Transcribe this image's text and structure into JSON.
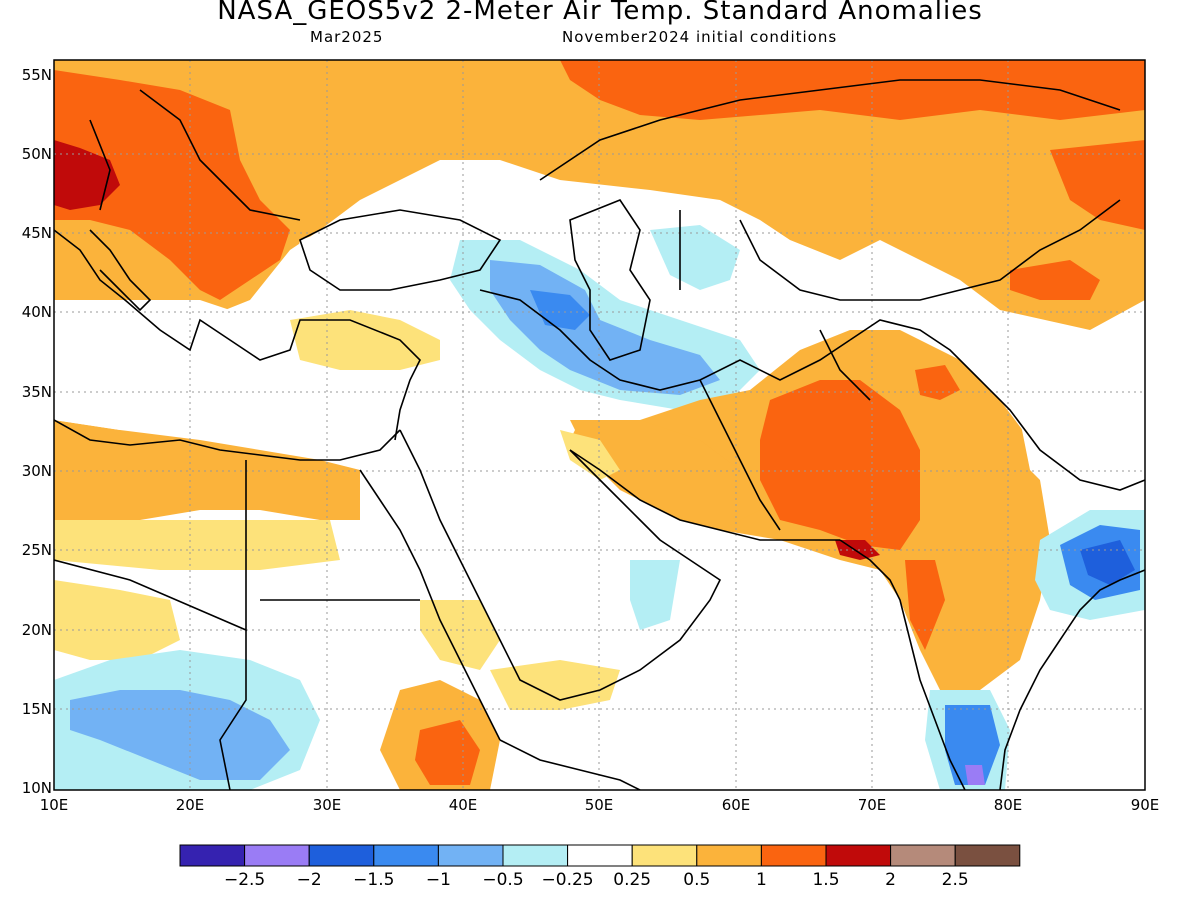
{
  "title": "NASA_GEOS5v2 2-Meter Air Temp. Standard Anomalies",
  "subtitle_left": "Mar2025",
  "subtitle_right": "November2024 initial conditions",
  "lat_labels": [
    "55N",
    "50N",
    "45N",
    "40N",
    "35N",
    "30N",
    "25N",
    "20N",
    "15N",
    "10N"
  ],
  "lon_labels": [
    "10E",
    "20E",
    "30E",
    "40E",
    "50E",
    "60E",
    "70E",
    "80E",
    "90E"
  ],
  "colorbar": {
    "colors": [
      "#3522b0",
      "#9a7cf5",
      "#1e5fdc",
      "#3a8af0",
      "#72b2f4",
      "#b4eef4",
      "#ffffff",
      "#fde27a",
      "#fbb33b",
      "#fa6410",
      "#c00a0a",
      "#b58a7a",
      "#7a5040"
    ],
    "labels": [
      "−2.5",
      "−2",
      "−1.5",
      "−1",
      "−0.5",
      "−0.25",
      "0.25",
      "0.5",
      "1",
      "1.5",
      "2",
      "2.5"
    ]
  }
}
